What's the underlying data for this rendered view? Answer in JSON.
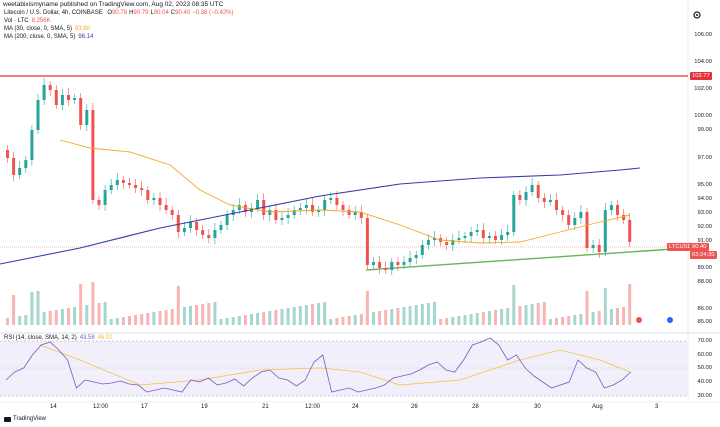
{
  "header": {
    "text": "weetabixismyname published on TradingView.com, Aug 02, 2023 08:35 UTC"
  },
  "symbol": {
    "title": "Litecoin / U.S. Dollar, 4h, COINBASE",
    "o_label": "O",
    "o": "90.78",
    "h_label": "H",
    "h": "90.79",
    "l_label": "L",
    "l": "90.04",
    "c_label": "C",
    "c": "90.40",
    "change": "−0.38 (−0.42%)"
  },
  "vol": {
    "label": "Vol · LTC",
    "value": "8.256K"
  },
  "ma30": {
    "label": "MA (30, close, 0, SMA, 5)",
    "value": "93.80",
    "color": "#f5a623"
  },
  "ma200": {
    "label": "MA (200, close, 0, SMA, 5)",
    "value": "96.14",
    "color": "#3a3aa8"
  },
  "rsi": {
    "label": "RSI (14, close, SMA, 14, 2)",
    "value": "43.58",
    "value2": "46.02"
  },
  "price_axis": [
    "106.00",
    "104.00",
    "102.00",
    "100.00",
    "99.00",
    "97.00",
    "95.00",
    "94.00",
    "93.00",
    "92.00",
    "91.00",
    "89.00",
    "88.00",
    "86.00",
    "85.00"
  ],
  "rsi_axis": [
    "70.00",
    "60.00",
    "50.00",
    "40.00",
    "30.00"
  ],
  "x_axis": [
    "14",
    "12:00",
    "17",
    "19",
    "21",
    "12:00",
    "24",
    "26",
    "28",
    "30",
    "Aug",
    "3"
  ],
  "tags": {
    "resistance": "102.77",
    "ltcusd": "LTCUSD",
    "price": "90.40",
    "countdown": "03:24:30"
  },
  "colors": {
    "up": "#26a69a",
    "down": "#ef5350",
    "resistance": "#e5323b",
    "support": "#67b45a",
    "rsi_line": "#7e57c2",
    "rsi_ma": "#f5c242"
  },
  "brand": {
    "name": "TradingView"
  },
  "icons": {
    "settings": "gear-icon",
    "currency": "currency-icon"
  }
}
